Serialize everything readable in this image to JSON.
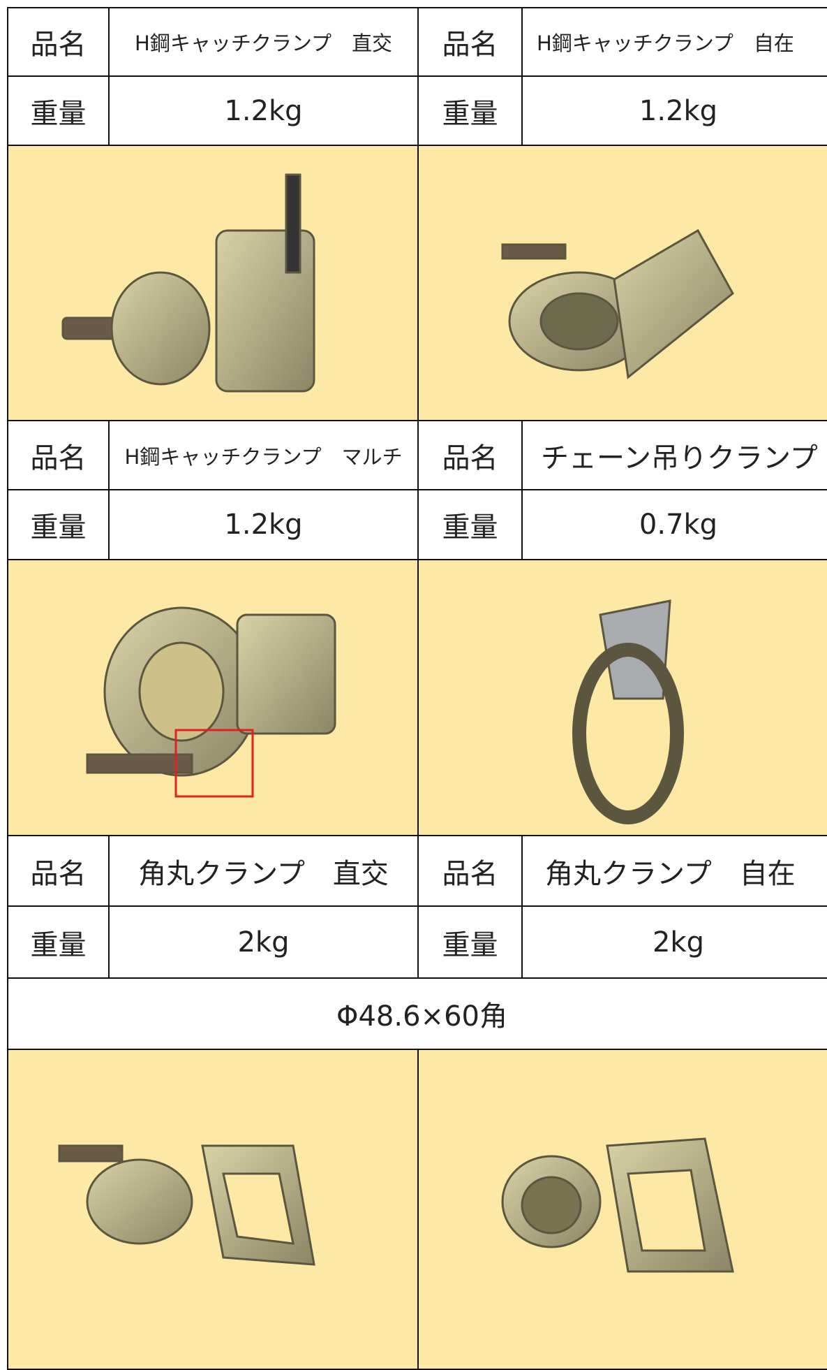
{
  "items": [
    {
      "name_label": "品名",
      "name": "H鋼キャッチクランプ　直交",
      "weight_label": "重量",
      "weight": "1.2kg"
    },
    {
      "name_label": "品名",
      "name": "H鋼キャッチクランプ　自在",
      "weight_label": "重量",
      "weight": "1.2kg"
    },
    {
      "name_label": "品名",
      "name": "H鋼キャッチクランプ　マルチ",
      "weight_label": "重量",
      "weight": "1.2kg"
    },
    {
      "name_label": "品名",
      "name": "チェーン吊りクランプ",
      "weight_label": "重量",
      "weight": "0.7kg"
    },
    {
      "name_label": "品名",
      "name": "角丸クランプ　直交",
      "weight_label": "重量",
      "weight": "2kg"
    },
    {
      "name_label": "品名",
      "name": "角丸クランプ　自在",
      "weight_label": "重量",
      "weight": "2kg"
    }
  ],
  "spec": "Φ48.6×60角"
}
